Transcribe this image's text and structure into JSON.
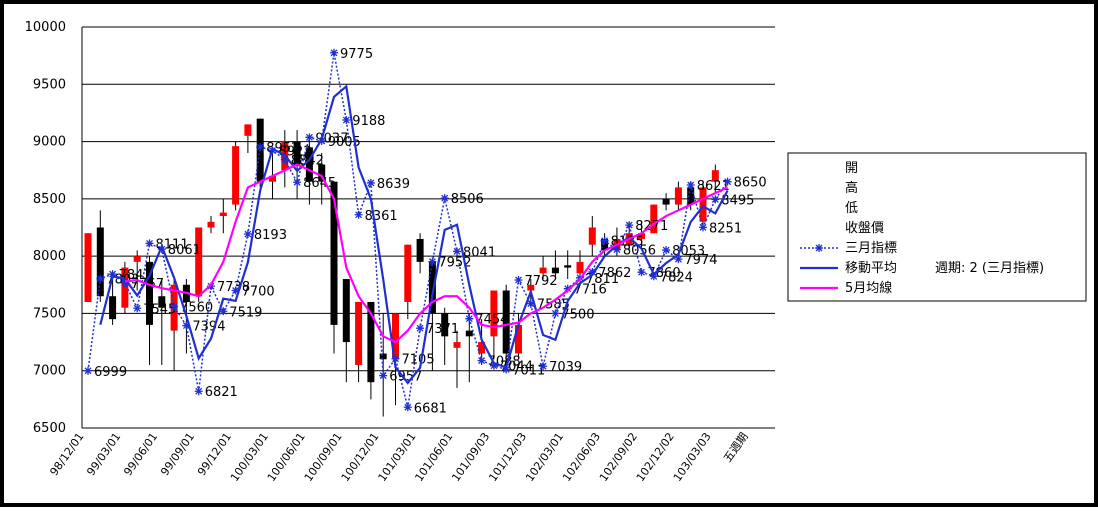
{
  "chart_data": {
    "type": "candlestick",
    "categories": [
      "98/12/01",
      null,
      null,
      "99/03/01",
      null,
      null,
      "99/06/01",
      null,
      null,
      "99/09/01",
      null,
      null,
      "99/12/01",
      null,
      null,
      "100/03/01",
      null,
      null,
      "100/06/01",
      null,
      null,
      "100/09/01",
      null,
      null,
      "100/12/01",
      null,
      null,
      "101/03/01",
      null,
      null,
      "101/06/01",
      null,
      null,
      "101/09/03",
      null,
      null,
      "101/12/03",
      null,
      null,
      "102/03/01",
      null,
      null,
      "102/06/03",
      null,
      null,
      "102/09/02",
      null,
      null,
      "102/12/02",
      null,
      null,
      "103/03/03",
      null,
      null,
      "五週期"
    ],
    "ylim": [
      6500,
      10000
    ],
    "yticks": [
      6500,
      7000,
      7500,
      8000,
      8500,
      9000,
      9500,
      10000
    ],
    "grid": true,
    "up_color": "#ff0000",
    "down_color": "#000000",
    "series": [
      {
        "name": "開",
        "values": [
          7600,
          8250,
          7650,
          7550,
          7950,
          7950,
          7650,
          7350,
          7750,
          7650,
          8250,
          8350,
          8450,
          9050,
          9200,
          8650,
          8750,
          9000,
          8950,
          8800,
          8650,
          7800,
          7050,
          7600,
          7150,
          7100,
          7600,
          8150,
          7950,
          7500,
          7200,
          7350,
          7150,
          7300,
          7700,
          7150,
          7700,
          7850,
          7900,
          7920,
          7850,
          8100,
          8150,
          8050,
          8100,
          8150,
          8200,
          8500,
          8450,
          8600,
          8300,
          8650,
          null,
          null,
          null
        ]
      },
      {
        "name": "高",
        "values": [
          8200,
          8400,
          7850,
          7950,
          8050,
          8000,
          7800,
          7800,
          7800,
          8250,
          8350,
          8500,
          9000,
          9150,
          9200,
          8900,
          9100,
          9100,
          9050,
          8900,
          8650,
          7800,
          7600,
          7600,
          7500,
          7500,
          8100,
          8200,
          7950,
          7550,
          7350,
          7500,
          7450,
          7700,
          7750,
          7500,
          7800,
          8000,
          8050,
          8050,
          8050,
          8350,
          8200,
          8250,
          8250,
          8300,
          8450,
          8550,
          8650,
          8650,
          8650,
          8800,
          null,
          null,
          null
        ]
      },
      {
        "name": "低",
        "values": [
          7600,
          7600,
          7400,
          7500,
          7700,
          7050,
          7050,
          7000,
          7150,
          7600,
          8200,
          8200,
          8400,
          8900,
          8600,
          8500,
          8600,
          8500,
          8450,
          8450,
          7150,
          6900,
          6900,
          6750,
          6600,
          6700,
          7450,
          7850,
          7000,
          7050,
          6850,
          6900,
          7050,
          7100,
          7000,
          7100,
          7550,
          7800,
          7800,
          7800,
          7800,
          8000,
          8000,
          8000,
          8050,
          8100,
          8200,
          8400,
          8400,
          8400,
          8250,
          8550,
          null,
          null,
          null
        ]
      },
      {
        "name": "收盤價",
        "values": [
          8200,
          7650,
          7450,
          7900,
          8000,
          7400,
          7550,
          7750,
          7600,
          8250,
          8300,
          8380,
          8960,
          9150,
          8650,
          8700,
          9000,
          8800,
          8650,
          8650,
          7400,
          7250,
          7600,
          6900,
          7100,
          7500,
          8100,
          7950,
          7500,
          7300,
          7250,
          7300,
          7250,
          7700,
          7150,
          7400,
          7750,
          7900,
          7850,
          7900,
          7950,
          8250,
          8050,
          8150,
          8200,
          8200,
          8450,
          8450,
          8600,
          8450,
          8600,
          8750,
          null,
          null,
          null
        ]
      }
    ],
    "lines": [
      {
        "name": "三月指標",
        "color": "#1f2fd0",
        "style": "dotted",
        "marker": "star",
        "values": [
          6999,
          7803,
          7843,
          7767,
          7545,
          8111,
          8061,
          7560,
          7394,
          6821,
          7738,
          7519,
          7700,
          8193,
          8952,
          8922,
          8842,
          8645,
          9037,
          9005,
          9775,
          9188,
          8361,
          8639,
          6957,
          7105,
          6681,
          7371,
          7952,
          8506,
          8041,
          7454,
          7088,
          7044,
          7011,
          7792,
          7585,
          7039,
          7500,
          7716,
          7811,
          7862,
          8135,
          8056,
          8271,
          7860,
          7824,
          8053,
          7974,
          8621,
          8251,
          8495,
          8650,
          null,
          null
        ]
      },
      {
        "name": "移動平均",
        "color": "#1f2fd0",
        "style": "solid",
        "values": [
          null,
          7401,
          7823,
          7805,
          7656,
          7828,
          8086,
          7811,
          7477,
          7108,
          7280,
          7629,
          7610,
          7947,
          8573,
          8937,
          8882,
          8744,
          8841,
          9021,
          9390,
          9482,
          8775,
          8500,
          7798,
          7031,
          6893,
          7026,
          7662,
          8229,
          8274,
          7748,
          7271,
          7066,
          7028,
          7402,
          7689,
          7312,
          7270,
          7608,
          7764,
          7837,
          7999,
          8096,
          8164,
          8066,
          7842,
          7939,
          8014,
          8298,
          8436,
          8373,
          8573,
          null,
          null
        ]
      },
      {
        "name": "5月均線",
        "color": "#ff00ff",
        "style": "solid",
        "values": [
          null,
          null,
          null,
          7780,
          7790,
          7750,
          7720,
          7700,
          7680,
          7650,
          7750,
          7950,
          8300,
          8600,
          8650,
          8700,
          8750,
          8800,
          8750,
          8700,
          8500,
          7900,
          7650,
          7500,
          7300,
          7250,
          7350,
          7500,
          7600,
          7650,
          7650,
          7550,
          7400,
          7380,
          7400,
          7420,
          7500,
          7550,
          7620,
          7700,
          7800,
          7950,
          8050,
          8100,
          8150,
          8200,
          8280,
          8350,
          8400,
          8450,
          8500,
          8550,
          8600,
          null,
          null
        ]
      }
    ],
    "legend_note": "週期: 2 (三月指標)"
  }
}
